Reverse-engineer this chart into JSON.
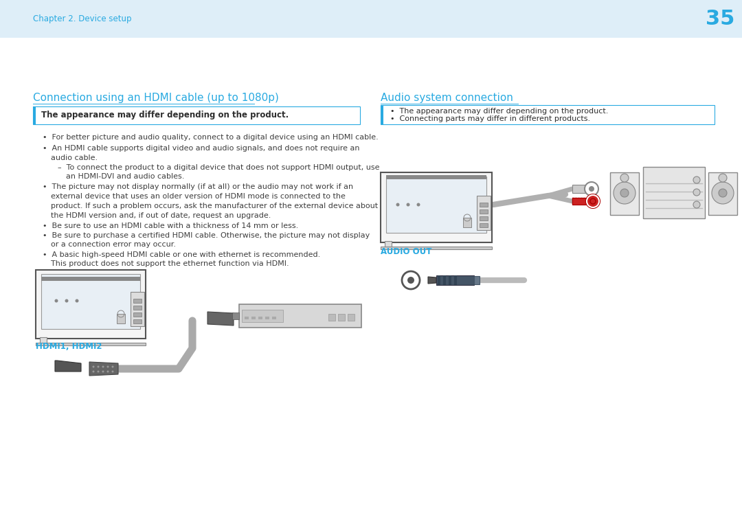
{
  "bg_color": "#deeef8",
  "content_bg": "#ffffff",
  "page_number": "35",
  "chapter": "Chapter 2. Device setup",
  "section1_title": "Connection using an HDMI cable (up to 1080p)",
  "section2_title": "Audio system connection",
  "accent_color": "#29aae1",
  "text_color": "#3d3d3d",
  "dark_text": "#2d2d2d",
  "note_border_color": "#29aae1",
  "note_bg": "#ffffff",
  "note_text1": "The appearance may differ depending on the product.",
  "note_text2_1": "The appearance may differ depending on the product.",
  "note_text2_2": "Connecting parts may differ in different products.",
  "bullet1": "For better picture and audio quality, connect to a digital device using an HDMI cable.",
  "bullet2a": "An HDMI cable supports digital video and audio signals, and does not require an",
  "bullet2b": "audio cable.",
  "sub_bullet": "–  To connect the product to a digital device that does not support HDMI output, use",
  "sub_bullet2": "an HDMI-DVI and audio cables.",
  "bullet3a": "The picture may not display normally (if at all) or the audio may not work if an",
  "bullet3b": "external device that uses an older version of HDMI mode is connected to the",
  "bullet3c": "product. If such a problem occurs, ask the manufacturer of the external device about",
  "bullet3d": "the HDMI version and, if out of date, request an upgrade.",
  "bullet4": "Be sure to use an HDMI cable with a thickness of 14 mm or less.",
  "bullet5a": "Be sure to purchase a certified HDMI cable. Otherwise, the picture may not display",
  "bullet5b": "or a connection error may occur.",
  "bullet6a": "A basic high-speed HDMI cable or one with ethernet is recommended.",
  "bullet6b": "This product does not support the ethernet function via HDMI.",
  "hdmi_label": "HDMI1, HDMI2",
  "audio_out_label": "AUDIO OUT"
}
